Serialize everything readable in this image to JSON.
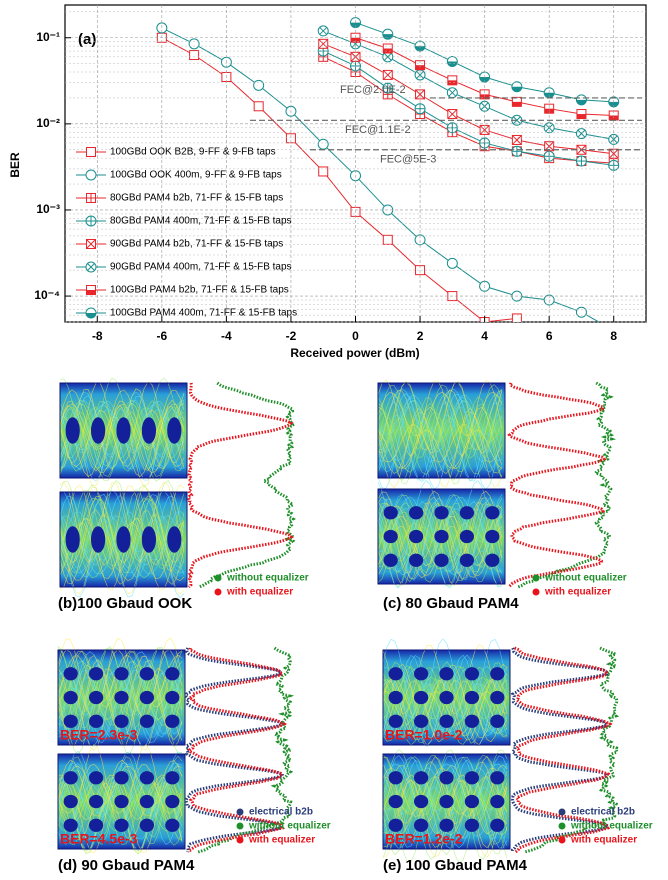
{
  "chart_data": {
    "type": "line",
    "panel_label": "(a)",
    "x_label": "Received power (dBm)",
    "y_label": "BER",
    "xlim": [
      -9,
      9
    ],
    "xticks": [
      -8,
      -6,
      -4,
      -2,
      0,
      2,
      4,
      6,
      8
    ],
    "ylim": [
      5e-05,
      0.24
    ],
    "log_y": true,
    "grid": true,
    "yticks": [
      {
        "value": 0.0001,
        "label": "10⁻⁴"
      },
      {
        "value": 0.001,
        "label": "10⁻³"
      },
      {
        "value": 0.01,
        "label": "10⁻²"
      },
      {
        "value": 0.1,
        "label": "10⁻¹"
      }
    ],
    "series": [
      {
        "name": "100GBd OOK B2B, 9-FF & 9-FB taps",
        "color": "#e8262c",
        "marker": "square",
        "symbol": "open",
        "x": [
          -6,
          -5,
          -4,
          -3,
          -2,
          -1,
          0,
          1,
          2,
          3,
          4,
          5
        ],
        "values": [
          0.1,
          0.063,
          0.035,
          0.016,
          0.0068,
          0.0028,
          0.00095,
          0.00045,
          0.0002,
          0.0001,
          5e-05,
          5.5e-05
        ]
      },
      {
        "name": "100GBd OOK 400m, 9-FF & 9-FB taps",
        "color": "#1a8f8f",
        "marker": "circle",
        "symbol": "open",
        "x": [
          -6,
          -5,
          -4,
          -3,
          -2,
          -1,
          0,
          1,
          2,
          3,
          4,
          5,
          6,
          7,
          8
        ],
        "values": [
          0.13,
          0.085,
          0.052,
          0.028,
          0.014,
          0.0058,
          0.0025,
          0.001,
          0.00045,
          0.00024,
          0.00013,
          0.0001,
          9e-05,
          6.5e-05,
          4e-05
        ]
      },
      {
        "name": "80GBd PAM4 b2b, 71-FF & 15-FB taps",
        "color": "#e8262c",
        "marker": "square",
        "symbol": "plus",
        "x": [
          -1,
          0,
          1,
          2,
          3,
          4,
          5,
          6,
          7,
          8
        ],
        "values": [
          0.06,
          0.04,
          0.022,
          0.013,
          0.008,
          0.0055,
          0.0048,
          0.004,
          0.0037,
          0.0035
        ]
      },
      {
        "name": "80GBd PAM4 400m, 71-FF & 15-FB taps",
        "color": "#1a8f8f",
        "marker": "circle",
        "symbol": "plus",
        "x": [
          -1,
          0,
          1,
          2,
          3,
          4,
          5,
          6,
          7,
          8
        ],
        "values": [
          0.07,
          0.047,
          0.026,
          0.015,
          0.009,
          0.006,
          0.0048,
          0.0042,
          0.0037,
          0.0033
        ]
      },
      {
        "name": "90GBd PAM4 b2b, 71-FF & 15-FB taps",
        "color": "#e8262c",
        "marker": "square",
        "symbol": "cross",
        "x": [
          -1,
          0,
          1,
          2,
          3,
          4,
          5,
          6,
          7,
          8
        ],
        "values": [
          0.085,
          0.06,
          0.037,
          0.022,
          0.013,
          0.0085,
          0.0065,
          0.0055,
          0.005,
          0.0045
        ]
      },
      {
        "name": "90GBd PAM4 400m, 71-FF & 15-FB taps",
        "color": "#1a8f8f",
        "marker": "circle",
        "symbol": "cross",
        "x": [
          -1,
          0,
          1,
          2,
          3,
          4,
          5,
          6,
          7,
          8
        ],
        "values": [
          0.12,
          0.085,
          0.06,
          0.037,
          0.023,
          0.016,
          0.011,
          0.009,
          0.0077,
          0.0066
        ]
      },
      {
        "name": "100GBd PAM4 b2b, 71-FF & 15-FB taps",
        "color": "#e8262c",
        "marker": "square",
        "symbol": "half",
        "x": [
          0,
          1,
          2,
          3,
          4,
          5,
          6,
          7,
          8
        ],
        "values": [
          0.1,
          0.075,
          0.048,
          0.032,
          0.022,
          0.018,
          0.015,
          0.013,
          0.0125
        ]
      },
      {
        "name": "100GBd PAM4 400m, 71-FF & 15-FB taps",
        "color": "#1a8f8f",
        "marker": "circle",
        "symbol": "half",
        "x": [
          0,
          1,
          2,
          3,
          4,
          5,
          6,
          7,
          8
        ],
        "values": [
          0.15,
          0.11,
          0.08,
          0.053,
          0.035,
          0.027,
          0.023,
          0.019,
          0.018
        ]
      }
    ],
    "thresholds": [
      {
        "label": "FEC@2.0E-2",
        "value": 0.02
      },
      {
        "label": "FEC@1.1E-2",
        "value": 0.011
      },
      {
        "label": "FEC@5E-3",
        "value": 0.005
      }
    ]
  },
  "panels": [
    {
      "caption": "(b)100 Gbaud OOK",
      "legend": [
        "without equalizer",
        "with equalizer"
      ],
      "ber_labels": []
    },
    {
      "caption": "(c) 80 Gbaud PAM4",
      "legend": [
        "without equalizer",
        "with equalizer"
      ],
      "ber_labels": []
    },
    {
      "caption": "(d) 90 Gbaud PAM4",
      "legend": [
        "electrical b2b",
        "without equalizer",
        "with equalizer"
      ],
      "ber_labels": [
        "BER=2.3e-3",
        "BER=4.5e-3"
      ]
    },
    {
      "caption": "(e) 100 Gbaud PAM4",
      "legend": [
        "electrical b2b",
        "without equalizer",
        "with equalizer"
      ],
      "ber_labels": [
        "BER=1.0e-2",
        "BER=1.2e-2"
      ]
    }
  ]
}
